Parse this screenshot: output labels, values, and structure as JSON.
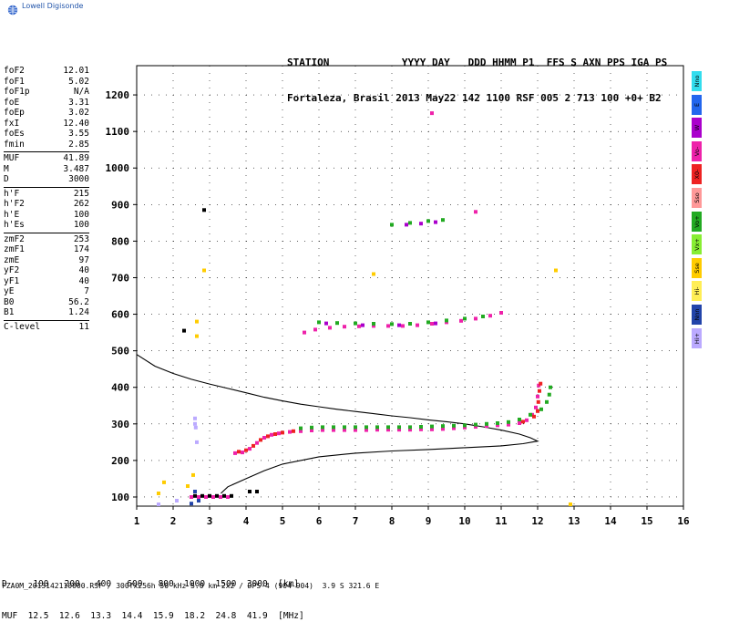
{
  "app": {
    "logo_text": "Lowell Digisonde"
  },
  "header": {
    "line1": "STATION            YYYY DAY   DDD HHMM P1  FFS S AXN PPS IGA PS",
    "line2": "Fortaleza, Brasil 2013 May22 142 1100 RSF 005 2 713 100 +0+ B2"
  },
  "params": [
    {
      "name": "foF2",
      "value": "12.01"
    },
    {
      "name": "foF1",
      "value": "5.02"
    },
    {
      "name": "foF1p",
      "value": "N/A"
    },
    {
      "name": "foE",
      "value": "3.31"
    },
    {
      "name": "foEp",
      "value": "3.02"
    },
    {
      "name": "fxI",
      "value": "12.40"
    },
    {
      "name": "foEs",
      "value": "3.55"
    },
    {
      "name": "fmin",
      "value": "2.85"
    },
    {
      "name": "MUF",
      "value": "41.89",
      "sep": true
    },
    {
      "name": "M",
      "value": "3.487"
    },
    {
      "name": "D",
      "value": "3000"
    },
    {
      "name": "h'F",
      "value": "215",
      "sep": true
    },
    {
      "name": "h'F2",
      "value": "262"
    },
    {
      "name": "h'E",
      "value": "100"
    },
    {
      "name": "h'Es",
      "value": "100"
    },
    {
      "name": "zmF2",
      "value": "253",
      "sep": true
    },
    {
      "name": "zmF1",
      "value": "174"
    },
    {
      "name": "zmE",
      "value": "97"
    },
    {
      "name": "yF2",
      "value": "40"
    },
    {
      "name": "yF1",
      "value": "40"
    },
    {
      "name": "yE",
      "value": "7"
    },
    {
      "name": "B0",
      "value": "56.2"
    },
    {
      "name": "B1",
      "value": "1.24"
    },
    {
      "name": "C-level",
      "value": "11",
      "sep": true
    }
  ],
  "mode_legend": [
    {
      "label": "Nno",
      "color": "#33ddee"
    },
    {
      "label": "E",
      "color": "#2266ee"
    },
    {
      "label": "W",
      "color": "#aa00cc"
    },
    {
      "label": "Vo-",
      "color": "#ee22aa"
    },
    {
      "label": "X0-",
      "color": "#ee2222"
    },
    {
      "label": "Sso",
      "color": "#ff9999"
    },
    {
      "label": "Vo+",
      "color": "#22aa22"
    },
    {
      "label": "Vx+",
      "color": "#88ee33"
    },
    {
      "label": "Sse",
      "color": "#ffcc00"
    },
    {
      "label": "Hi-",
      "color": "#ffee55"
    },
    {
      "label": "Nnn",
      "color": "#2244aa"
    },
    {
      "label": "Hi+",
      "color": "#bbaaff"
    }
  ],
  "muf_table": {
    "line1": "D     100   200   400   600   800  1000  1500  3000  [km]",
    "line2": "MUF  12.5  12.6  13.3  14.4  15.9  18.2  24.8  41.9  [MHz]"
  },
  "footer": {
    "text": "FZA0M_2013142110000.RSF / 300fx256h 50 kHz 5.0 km 2x2 / DPS-4 (904-904)  3.9 S 321.6 E"
  },
  "chart_data": {
    "type": "scatter",
    "xlim": [
      1,
      16
    ],
    "ylim": [
      75,
      1280
    ],
    "x_ticks": [
      1,
      2,
      3,
      4,
      5,
      6,
      7,
      8,
      9,
      10,
      11,
      12,
      13,
      14,
      15,
      16
    ],
    "y_ticks": [
      100,
      200,
      300,
      400,
      500,
      600,
      700,
      800,
      900,
      1000,
      1100,
      1200
    ],
    "grid": true,
    "series": [
      {
        "color": "#ee22aa",
        "points": [
          [
            3.7,
            220
          ],
          [
            3.9,
            222
          ],
          [
            4.1,
            232
          ],
          [
            4.3,
            248
          ],
          [
            4.5,
            262
          ],
          [
            4.7,
            270
          ],
          [
            4.9,
            274
          ],
          [
            5.2,
            278
          ],
          [
            5.5,
            280
          ],
          [
            5.8,
            282
          ],
          [
            6.1,
            283
          ],
          [
            6.4,
            283
          ],
          [
            6.7,
            283
          ],
          [
            7.0,
            283
          ],
          [
            7.3,
            283
          ],
          [
            7.6,
            284
          ],
          [
            7.9,
            284
          ],
          [
            8.2,
            284
          ],
          [
            8.5,
            284
          ],
          [
            8.8,
            285
          ],
          [
            9.1,
            285
          ],
          [
            9.4,
            286
          ],
          [
            9.7,
            288
          ],
          [
            10.0,
            290
          ],
          [
            10.3,
            292
          ],
          [
            10.6,
            294
          ],
          [
            10.9,
            296
          ],
          [
            11.2,
            298
          ],
          [
            11.5,
            302
          ],
          [
            11.7,
            310
          ],
          [
            11.85,
            325
          ],
          [
            11.95,
            345
          ],
          [
            12.0,
            375
          ],
          [
            12.03,
            405
          ],
          [
            5.6,
            550
          ],
          [
            5.9,
            558
          ],
          [
            6.3,
            563
          ],
          [
            6.7,
            566
          ],
          [
            7.1,
            567
          ],
          [
            7.5,
            568
          ],
          [
            7.9,
            568
          ],
          [
            8.3,
            568
          ],
          [
            8.7,
            570
          ],
          [
            9.1,
            574
          ],
          [
            9.5,
            578
          ],
          [
            9.9,
            582
          ],
          [
            10.3,
            588
          ],
          [
            10.7,
            596
          ],
          [
            11.0,
            604
          ]
        ]
      },
      {
        "color": "#22aa22",
        "points": [
          [
            5.5,
            288
          ],
          [
            5.8,
            290
          ],
          [
            6.1,
            291
          ],
          [
            6.4,
            291
          ],
          [
            6.7,
            291
          ],
          [
            7.0,
            291
          ],
          [
            7.3,
            291
          ],
          [
            7.6,
            291
          ],
          [
            7.9,
            291
          ],
          [
            8.2,
            291
          ],
          [
            8.5,
            291
          ],
          [
            8.8,
            292
          ],
          [
            9.1,
            293
          ],
          [
            9.4,
            294
          ],
          [
            9.7,
            295
          ],
          [
            10.0,
            296
          ],
          [
            10.3,
            298
          ],
          [
            10.6,
            300
          ],
          [
            10.9,
            302
          ],
          [
            11.2,
            305
          ],
          [
            11.5,
            312
          ],
          [
            11.8,
            325
          ],
          [
            12.1,
            340
          ],
          [
            12.25,
            360
          ],
          [
            12.32,
            380
          ],
          [
            12.35,
            400
          ],
          [
            6.0,
            578
          ],
          [
            6.5,
            576
          ],
          [
            7.0,
            575
          ],
          [
            7.5,
            574
          ],
          [
            8.0,
            573
          ],
          [
            8.5,
            574
          ],
          [
            9.0,
            578
          ],
          [
            9.5,
            583
          ],
          [
            10.0,
            588
          ],
          [
            10.5,
            594
          ],
          [
            8.0,
            845
          ],
          [
            8.5,
            850
          ],
          [
            9.0,
            855
          ],
          [
            9.4,
            858
          ]
        ]
      },
      {
        "color": "#ee2222",
        "points": [
          [
            3.8,
            224
          ],
          [
            4.0,
            228
          ],
          [
            4.2,
            240
          ],
          [
            4.4,
            256
          ],
          [
            4.6,
            266
          ],
          [
            4.8,
            272
          ],
          [
            5.0,
            276
          ],
          [
            5.3,
            280
          ],
          [
            11.6,
            306
          ],
          [
            11.9,
            320
          ],
          [
            12.0,
            335
          ],
          [
            12.02,
            360
          ],
          [
            12.05,
            390
          ],
          [
            12.08,
            410
          ]
        ]
      },
      {
        "color": "#aa00cc",
        "points": [
          [
            6.2,
            575
          ],
          [
            7.2,
            570
          ],
          [
            8.2,
            570
          ],
          [
            9.2,
            575
          ],
          [
            8.4,
            845
          ],
          [
            8.8,
            848
          ],
          [
            9.2,
            852
          ]
        ]
      },
      {
        "color": "#000000",
        "points": [
          [
            2.6,
            103
          ],
          [
            2.8,
            103
          ],
          [
            3.0,
            103
          ],
          [
            3.2,
            103
          ],
          [
            3.4,
            103
          ],
          [
            3.6,
            103
          ],
          [
            4.1,
            115
          ],
          [
            4.3,
            115
          ],
          [
            2.3,
            555
          ],
          [
            2.85,
            885
          ]
        ]
      },
      {
        "color": "#ee22aa",
        "points": [
          [
            2.5,
            100
          ],
          [
            2.7,
            100
          ],
          [
            2.9,
            100
          ],
          [
            3.1,
            100
          ],
          [
            3.3,
            100
          ],
          [
            3.5,
            100
          ],
          [
            9.1,
            1150
          ],
          [
            10.3,
            880
          ]
        ]
      },
      {
        "color": "#ffcc00",
        "points": [
          [
            1.6,
            110
          ],
          [
            1.75,
            140
          ],
          [
            2.4,
            130
          ],
          [
            2.55,
            160
          ],
          [
            2.65,
            580
          ],
          [
            2.65,
            540
          ],
          [
            2.85,
            720
          ],
          [
            7.5,
            710
          ],
          [
            12.5,
            720
          ],
          [
            12.9,
            80
          ]
        ]
      },
      {
        "color": "#bbaaff",
        "points": [
          [
            2.6,
            315
          ],
          [
            2.6,
            300
          ],
          [
            2.62,
            290
          ],
          [
            2.65,
            250
          ],
          [
            1.6,
            80
          ],
          [
            2.1,
            90
          ]
        ]
      },
      {
        "color": "#2244aa",
        "points": [
          [
            2.5,
            82
          ],
          [
            2.6,
            115
          ],
          [
            2.7,
            90
          ]
        ]
      }
    ],
    "profile": {
      "color": "#000000",
      "x": [
        1.0,
        1.5,
        2.0,
        2.5,
        3.0,
        3.5,
        4.0,
        4.5,
        5.0,
        5.5,
        6.0,
        6.5,
        7.0,
        7.5,
        8.0,
        8.5,
        9.0,
        9.5,
        10.0,
        10.5,
        11.0,
        11.5,
        11.8,
        12.0,
        11.6,
        11.0,
        10.0,
        9.0,
        8.0,
        7.0,
        6.0,
        5.0,
        4.5,
        4.0,
        3.5,
        3.31
      ],
      "y": [
        490,
        458,
        438,
        422,
        409,
        397,
        385,
        373,
        363,
        354,
        347,
        340,
        334,
        328,
        322,
        317,
        311,
        306,
        300,
        292,
        283,
        272,
        262,
        253,
        246,
        240,
        235,
        230,
        226,
        220,
        210,
        190,
        172,
        150,
        128,
        110
      ]
    }
  }
}
